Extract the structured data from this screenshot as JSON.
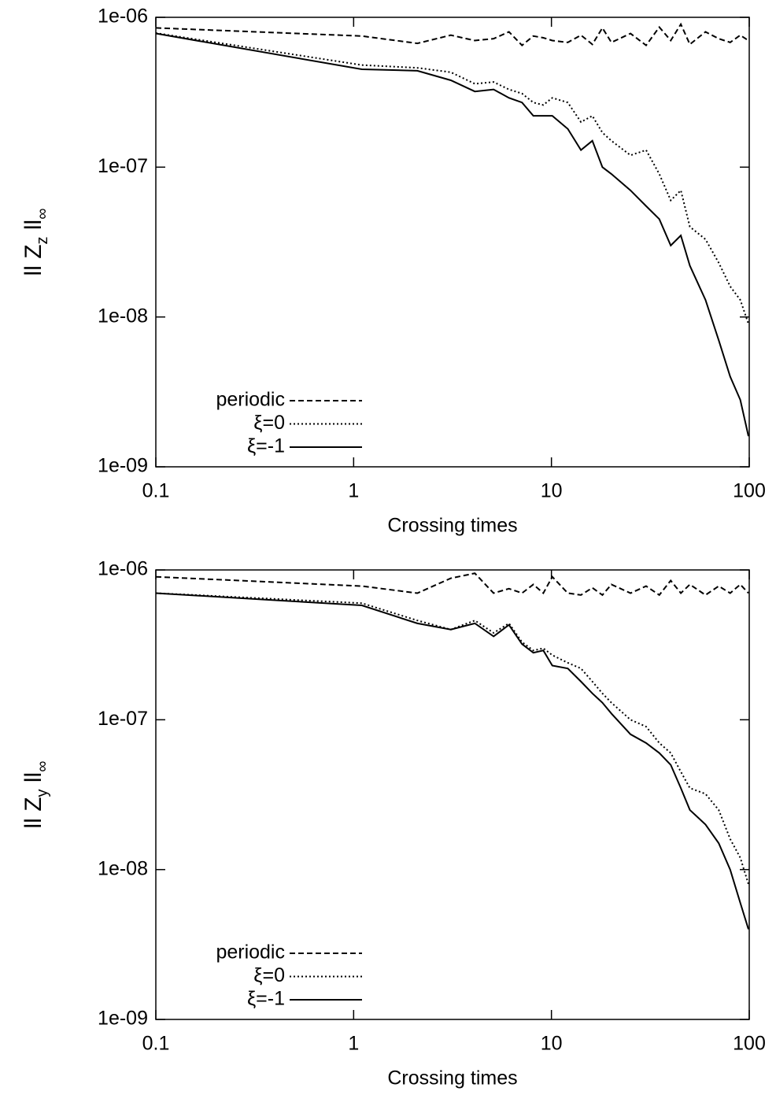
{
  "chart_data": [
    {
      "type": "line",
      "xlabel": "Crossing times",
      "ylabel": [
        "ll Z",
        "z",
        " ll",
        "∞"
      ],
      "xscale": "log",
      "yscale": "log",
      "legend": "lower left",
      "xlim": [
        0.1,
        100
      ],
      "xticks": [
        0.1,
        1,
        10,
        100
      ],
      "ylim": [
        1e-09,
        1e-06
      ],
      "yticks": [
        {
          "value": 1e-09,
          "label": "1e-09"
        },
        {
          "value": 1e-08,
          "label": "1e-08"
        },
        {
          "value": 1e-07,
          "label": "1e-07"
        },
        {
          "value": 1e-06,
          "label": "1e-06"
        }
      ],
      "x": [
        0.1,
        1.1,
        2.1,
        3.1,
        4.1,
        5.1,
        6.1,
        7.1,
        8.1,
        9.1,
        10.1,
        12.1,
        14.1,
        16.1,
        18.1,
        20.1,
        25.1,
        30.1,
        35.1,
        40.1,
        45.1,
        50.1,
        60.1,
        70.1,
        80.1,
        90.1,
        99.1
      ],
      "series": [
        {
          "name": "periodic",
          "color": "#000000",
          "dash": "dashed",
          "values": [
            8.5e-07,
            7.5e-07,
            6.7e-07,
            7.6e-07,
            7e-07,
            7.2e-07,
            8e-07,
            6.5e-07,
            7.5e-07,
            7.3e-07,
            7e-07,
            6.8e-07,
            7.6e-07,
            6.6e-07,
            8.5e-07,
            6.8e-07,
            7.8e-07,
            6.5e-07,
            8.6e-07,
            7e-07,
            9e-07,
            6.6e-07,
            8e-07,
            7.2e-07,
            6.8e-07,
            7.6e-07,
            7e-07
          ]
        },
        {
          "name": "ξ=0",
          "color": "#000000",
          "dash": "dotted",
          "values": [
            7.85e-07,
            4.8e-07,
            4.6e-07,
            4.3e-07,
            3.6e-07,
            3.7e-07,
            3.3e-07,
            3.1e-07,
            2.7e-07,
            2.6e-07,
            2.9e-07,
            2.7e-07,
            2e-07,
            2.2e-07,
            1.7e-07,
            1.5e-07,
            1.2e-07,
            1.3e-07,
            9e-08,
            6e-08,
            7e-08,
            4e-08,
            3.3e-08,
            2.3e-08,
            1.6e-08,
            1.3e-08,
            9e-09
          ]
        },
        {
          "name": "ξ=-1",
          "color": "#000000",
          "dash": "solid",
          "values": [
            7.8e-07,
            4.5e-07,
            4.4e-07,
            3.8e-07,
            3.2e-07,
            3.3e-07,
            2.9e-07,
            2.7e-07,
            2.2e-07,
            2.2e-07,
            2.2e-07,
            1.8e-07,
            1.3e-07,
            1.5e-07,
            1e-07,
            9e-08,
            7e-08,
            5.5e-08,
            4.5e-08,
            3e-08,
            3.5e-08,
            2.2e-08,
            1.3e-08,
            7e-09,
            4e-09,
            2.8e-09,
            1.6e-09
          ]
        }
      ]
    },
    {
      "type": "line",
      "xlabel": "Crossing times",
      "ylabel": [
        "ll Z",
        "y",
        " ll",
        "∞"
      ],
      "xscale": "log",
      "yscale": "log",
      "legend": "lower left",
      "xlim": [
        0.1,
        100
      ],
      "xticks": [
        0.1,
        1,
        10,
        100
      ],
      "ylim": [
        1e-09,
        1e-06
      ],
      "yticks": [
        {
          "value": 1e-09,
          "label": "1e-09"
        },
        {
          "value": 1e-08,
          "label": "1e-08"
        },
        {
          "value": 1e-07,
          "label": "1e-07"
        },
        {
          "value": 1e-06,
          "label": "1e-06"
        }
      ],
      "x": [
        0.1,
        1.1,
        2.1,
        3.1,
        4.1,
        5.1,
        6.1,
        7.1,
        8.1,
        9.1,
        10.1,
        12.1,
        14.1,
        16.1,
        18.1,
        20.1,
        25.1,
        30.1,
        35.1,
        40.1,
        45.1,
        50.1,
        60.1,
        70.1,
        80.1,
        90.1,
        99.1
      ],
      "series": [
        {
          "name": "periodic",
          "color": "#000000",
          "dash": "dashed",
          "values": [
            9e-07,
            7.8e-07,
            7e-07,
            8.8e-07,
            9.5e-07,
            7e-07,
            7.5e-07,
            7e-07,
            8e-07,
            7e-07,
            9e-07,
            7e-07,
            6.8e-07,
            7.6e-07,
            6.8e-07,
            8e-07,
            7e-07,
            7.8e-07,
            6.8e-07,
            8.5e-07,
            7e-07,
            8e-07,
            6.8e-07,
            7.8e-07,
            7e-07,
            8e-07,
            7e-07
          ]
        },
        {
          "name": "ξ=0",
          "color": "#000000",
          "dash": "dotted",
          "values": [
            7e-07,
            6e-07,
            4.6e-07,
            4e-07,
            4.6e-07,
            3.8e-07,
            4.4e-07,
            3.3e-07,
            2.9e-07,
            3e-07,
            2.7e-07,
            2.4e-07,
            2.2e-07,
            1.8e-07,
            1.5e-07,
            1.3e-07,
            1e-07,
            9e-08,
            7e-08,
            6e-08,
            4.5e-08,
            3.5e-08,
            3.2e-08,
            2.5e-08,
            1.6e-08,
            1.2e-08,
            8e-09
          ]
        },
        {
          "name": "ξ=-1",
          "color": "#000000",
          "dash": "solid",
          "values": [
            7e-07,
            5.8e-07,
            4.4e-07,
            4e-07,
            4.4e-07,
            3.6e-07,
            4.3e-07,
            3.2e-07,
            2.8e-07,
            2.9e-07,
            2.3e-07,
            2.2e-07,
            1.8e-07,
            1.5e-07,
            1.3e-07,
            1.1e-07,
            8e-08,
            7e-08,
            6e-08,
            5e-08,
            3.5e-08,
            2.5e-08,
            2e-08,
            1.5e-08,
            1e-08,
            6e-09,
            4e-09
          ]
        }
      ]
    }
  ]
}
